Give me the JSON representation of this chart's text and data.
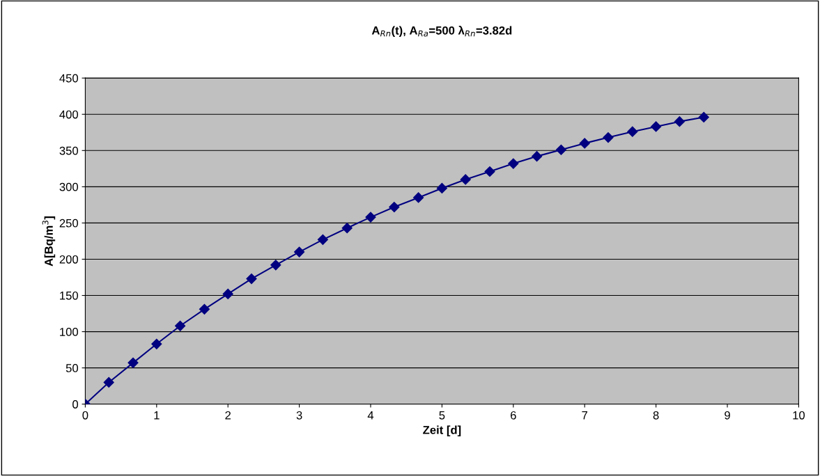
{
  "chart_data": {
    "type": "line",
    "title": "A$_{Rn}$(t), A$_{Ra}$=500 λ$_{Rn}$=3.82d",
    "xlabel": "Zeit [d]",
    "ylabel": "A[Bq/m$^{3}$]",
    "series": [
      {
        "color": "#000080",
        "x": [
          0,
          0.33,
          0.67,
          1,
          1.33,
          1.67,
          2,
          2.33,
          2.67,
          3,
          3.33,
          3.67,
          4,
          4.33,
          4.67,
          5,
          5.33,
          5.67,
          6,
          6.33,
          6.67,
          7,
          7.33,
          7.67,
          8,
          8.33,
          8.67
        ],
        "values": [
          0,
          30,
          57,
          83,
          108,
          131,
          152,
          173,
          192,
          210,
          227,
          243,
          258,
          272,
          285,
          298,
          310,
          321,
          332,
          342,
          351,
          360,
          368,
          376,
          383,
          390,
          396
        ]
      }
    ],
    "xlim": [
      0,
      10
    ],
    "xticks": [
      0,
      1,
      2,
      3,
      4,
      5,
      6,
      7,
      8,
      9,
      10
    ],
    "ylim": [
      0,
      450
    ],
    "yticks": [
      0,
      50,
      100,
      150,
      200,
      250,
      300,
      350,
      400,
      450
    ],
    "grid": "y",
    "marker": "diamond",
    "line_style": "solid",
    "legend": false
  }
}
